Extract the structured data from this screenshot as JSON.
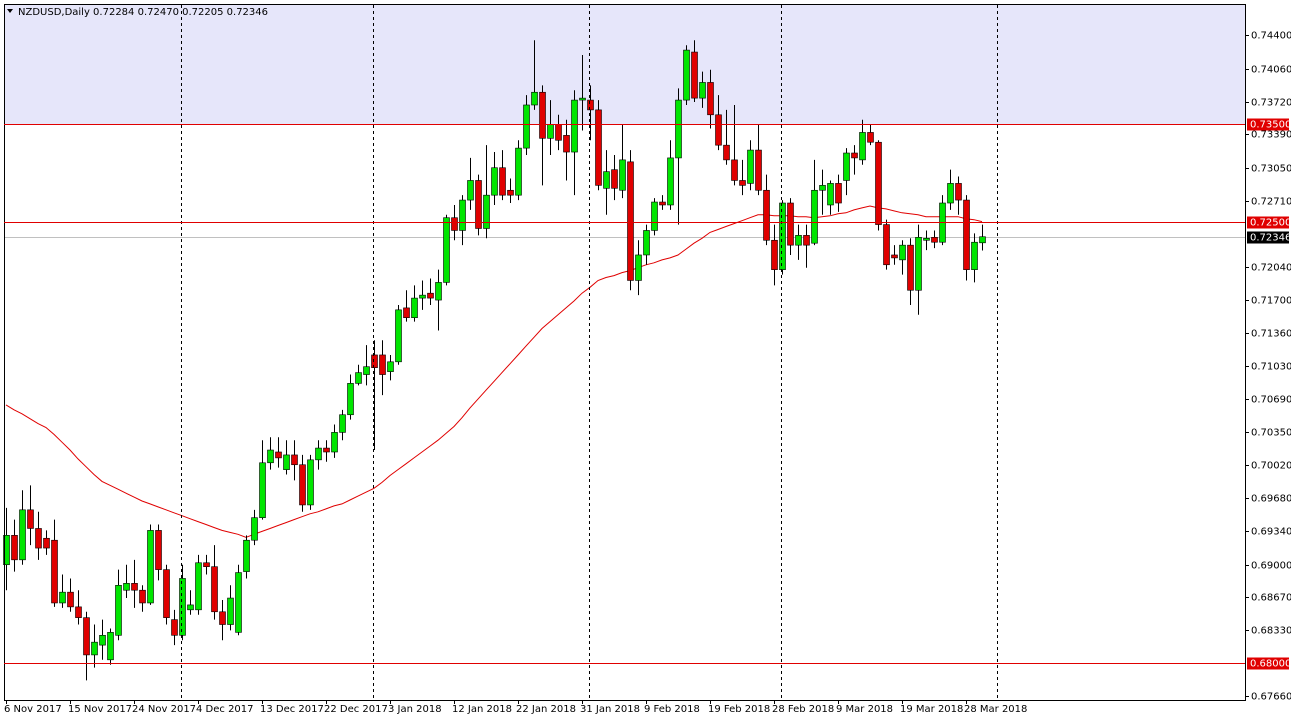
{
  "chart_data": {
    "type": "candlestick",
    "title": "NZDUSD,Daily  0.72284 0.72470 0.72205 0.72346",
    "categories": [
      "6 Nov 2017",
      null,
      null,
      null,
      null,
      null,
      null,
      null,
      "15 Nov 2017",
      null,
      null,
      null,
      null,
      null,
      null,
      null,
      "24 Nov 2017",
      null,
      null,
      null,
      null,
      null,
      null,
      null,
      "4 Dec 2017",
      null,
      null,
      null,
      null,
      null,
      null,
      null,
      "13 Dec 2017",
      null,
      null,
      null,
      null,
      null,
      null,
      null,
      "22 Dec 2017",
      null,
      null,
      null,
      null,
      null,
      null,
      null,
      "3 Jan 2018",
      null,
      null,
      null,
      null,
      null,
      null,
      null,
      "12 Jan 2018",
      null,
      null,
      null,
      null,
      null,
      null,
      null,
      "22 Jan 2018",
      null,
      null,
      null,
      null,
      null,
      null,
      null,
      "31 Jan 2018",
      null,
      null,
      null,
      null,
      null,
      null,
      null,
      "9 Feb 2018",
      null,
      null,
      null,
      null,
      null,
      null,
      null,
      "19 Feb 2018",
      null,
      null,
      null,
      null,
      null,
      null,
      null,
      "28 Feb 2018",
      null,
      null,
      null,
      null,
      null,
      null,
      null,
      "9 Mar 2018",
      null,
      null,
      null,
      null,
      null,
      null,
      null,
      "19 Mar 2018",
      null,
      null,
      null,
      null,
      null,
      null,
      null,
      "28 Mar 2018",
      null,
      null
    ],
    "open": [
      0.69,
      0.693,
      0.6905,
      0.6956,
      0.6937,
      0.6927,
      0.6925,
      0.6861,
      0.6872,
      0.6857,
      0.6846,
      0.6808,
      0.6818,
      0.6803,
      0.6828,
      0.6874,
      0.6881,
      0.6874,
      0.6861,
      0.6935,
      0.6895,
      0.6844,
      0.6828,
      0.6854,
      0.6854,
      0.6902,
      0.6898,
      0.6852,
      0.6839,
      0.6831,
      0.6893,
      0.6925,
      0.6948,
      0.7004,
      0.7015,
      0.6997,
      0.7012,
      0.7002,
      0.6961,
      0.7007,
      0.7019,
      0.7015,
      0.7035,
      0.7053,
      0.7085,
      0.7094,
      0.7114,
      0.7114,
      0.7097,
      0.7107,
      0.7162,
      0.7152,
      0.7172,
      0.7177,
      0.717,
      0.7188,
      0.7254,
      0.7241,
      0.7272,
      0.7292,
      0.7243,
      0.7277,
      0.7305,
      0.7282,
      0.7277,
      0.7325,
      0.7369,
      0.7382,
      0.7335,
      0.7349,
      0.7338,
      0.7321,
      0.7374,
      0.7374,
      0.7364,
      0.7284,
      0.7303,
      0.7282,
      0.7311,
      0.719,
      0.7216,
      0.7241,
      0.727,
      0.7267,
      0.7315,
      0.7374,
      0.7423,
      0.7376,
      0.7392,
      0.7359,
      0.7328,
      0.7313,
      0.7292,
      0.7289,
      0.7323,
      0.7282,
      0.7231,
      0.7201,
      0.7269,
      0.7226,
      0.7236,
      0.7228,
      0.7282,
      0.7267,
      0.7289,
      0.7292,
      0.732,
      0.7313,
      0.7341,
      0.7331,
      0.7247,
      0.7216,
      0.7211,
      0.7226,
      0.718,
      0.7231,
      0.7234,
      0.7229,
      0.7269,
      0.7289,
      0.7272,
      0.7201,
      0.72284
    ],
    "high": [
      0.6958,
      0.6946,
      0.6976,
      0.6981,
      0.6954,
      0.6935,
      0.6946,
      0.689,
      0.6886,
      0.6874,
      0.6852,
      0.6839,
      0.6844,
      0.6835,
      0.6895,
      0.69,
      0.6905,
      0.6879,
      0.6941,
      0.6941,
      0.69,
      0.6854,
      0.69,
      0.6874,
      0.691,
      0.691,
      0.692,
      0.6864,
      0.6879,
      0.69,
      0.693,
      0.6956,
      0.7027,
      0.703,
      0.703,
      0.7027,
      0.7027,
      0.7012,
      0.7012,
      0.7027,
      0.7027,
      0.7043,
      0.7058,
      0.7094,
      0.7104,
      0.7124,
      0.7129,
      0.7129,
      0.7114,
      0.7165,
      0.718,
      0.7185,
      0.719,
      0.7192,
      0.7201,
      0.7257,
      0.7267,
      0.7277,
      0.7315,
      0.7298,
      0.7328,
      0.7321,
      0.7323,
      0.7294,
      0.7333,
      0.7379,
      0.7435,
      0.7389,
      0.7374,
      0.7359,
      0.7354,
      0.7384,
      0.742,
      0.7389,
      0.7374,
      0.7323,
      0.7318,
      0.7349,
      0.7323,
      0.7231,
      0.7247,
      0.7274,
      0.7277,
      0.7333,
      0.7386,
      0.743,
      0.7435,
      0.7403,
      0.7405,
      0.7379,
      0.7364,
      0.7369,
      0.7313,
      0.7333,
      0.7349,
      0.7298,
      0.7247,
      0.7272,
      0.7274,
      0.7247,
      0.7247,
      0.7313,
      0.7303,
      0.7292,
      0.7298,
      0.7325,
      0.7328,
      0.7354,
      0.7349,
      0.7333,
      0.7252,
      0.7226,
      0.7231,
      0.7233,
      0.7247,
      0.7241,
      0.7241,
      0.7277,
      0.7303,
      0.7296,
      0.7277,
      0.7238,
      0.7247
    ],
    "low": [
      0.6874,
      0.6893,
      0.69,
      0.692,
      0.6905,
      0.691,
      0.6857,
      0.6856,
      0.6852,
      0.6839,
      0.6782,
      0.6795,
      0.6803,
      0.6798,
      0.6823,
      0.6866,
      0.6856,
      0.6852,
      0.6859,
      0.6884,
      0.6839,
      0.6818,
      0.6823,
      0.6849,
      0.6849,
      0.689,
      0.6844,
      0.6823,
      0.6833,
      0.6828,
      0.6886,
      0.692,
      0.6946,
      0.6997,
      0.6999,
      0.6992,
      0.6986,
      0.6954,
      0.6956,
      0.6997,
      0.7005,
      0.7009,
      0.7027,
      0.7048,
      0.7083,
      0.7083,
      0.7017,
      0.7073,
      0.7088,
      0.7104,
      0.7148,
      0.7148,
      0.716,
      0.7165,
      0.7139,
      0.7185,
      0.7231,
      0.7226,
      0.7262,
      0.7236,
      0.7233,
      0.7267,
      0.7272,
      0.7269,
      0.7272,
      0.7318,
      0.7364,
      0.7287,
      0.7318,
      0.7323,
      0.7292,
      0.7277,
      0.7343,
      0.7333,
      0.7282,
      0.7257,
      0.7272,
      0.7274,
      0.718,
      0.7175,
      0.7206,
      0.7236,
      0.7262,
      0.7262,
      0.7247,
      0.7369,
      0.7372,
      0.7366,
      0.7345,
      0.7323,
      0.7308,
      0.7287,
      0.7277,
      0.7282,
      0.7277,
      0.7226,
      0.7185,
      0.7196,
      0.7216,
      0.7211,
      0.7203,
      0.7226,
      0.7257,
      0.7257,
      0.726,
      0.7277,
      0.7298,
      0.7308,
      0.7328,
      0.7241,
      0.7201,
      0.7206,
      0.7196,
      0.7165,
      0.7155,
      0.7221,
      0.7223,
      0.7226,
      0.7262,
      0.7257,
      0.719,
      0.7188,
      0.72205
    ],
    "close": [
      0.693,
      0.6905,
      0.6956,
      0.6937,
      0.6917,
      0.6917,
      0.6861,
      0.6872,
      0.6857,
      0.6846,
      0.6808,
      0.6821,
      0.6828,
      0.6831,
      0.6879,
      0.6881,
      0.6874,
      0.6861,
      0.6935,
      0.6895,
      0.6846,
      0.6828,
      0.6886,
      0.6859,
      0.6902,
      0.6898,
      0.6852,
      0.6839,
      0.6866,
      0.6892,
      0.6925,
      0.6948,
      0.7004,
      0.7017,
      0.7009,
      0.7012,
      0.7002,
      0.6961,
      0.7007,
      0.7019,
      0.7015,
      0.7035,
      0.7053,
      0.7085,
      0.7096,
      0.7102,
      0.7101,
      0.7094,
      0.7107,
      0.716,
      0.7152,
      0.7172,
      0.7175,
      0.7172,
      0.7188,
      0.7254,
      0.7241,
      0.7272,
      0.7292,
      0.7243,
      0.7277,
      0.7305,
      0.7277,
      0.7277,
      0.7325,
      0.7369,
      0.7382,
      0.7335,
      0.7349,
      0.7333,
      0.7321,
      0.7374,
      0.7376,
      0.7364,
      0.7287,
      0.7301,
      0.7284,
      0.7313,
      0.719,
      0.7216,
      0.7241,
      0.727,
      0.7267,
      0.7315,
      0.7374,
      0.7425,
      0.7376,
      0.7392,
      0.7359,
      0.7328,
      0.7313,
      0.7292,
      0.7287,
      0.7323,
      0.7282,
      0.7231,
      0.7201,
      0.7269,
      0.7226,
      0.7236,
      0.7226,
      0.7282,
      0.7287,
      0.7289,
      0.7269,
      0.732,
      0.7315,
      0.7341,
      0.7331,
      0.7247,
      0.7206,
      0.7213,
      0.7226,
      0.718,
      0.7234,
      0.7233,
      0.7229,
      0.7269,
      0.7289,
      0.7272,
      0.7201,
      0.7229,
      0.72346
    ],
    "up_color": "#00e600",
    "down_color": "#e00000",
    "moving_average": {
      "color": "#e00000",
      "values": [
        0.7063,
        0.7058,
        0.7054,
        0.7049,
        0.7044,
        0.704,
        0.7033,
        0.7025,
        0.7017,
        0.7008,
        0.7,
        0.6992,
        0.6985,
        0.6981,
        0.6977,
        0.6973,
        0.6969,
        0.6965,
        0.6962,
        0.6959,
        0.6956,
        0.6953,
        0.695,
        0.6947,
        0.6944,
        0.6941,
        0.6938,
        0.6935,
        0.6933,
        0.6931,
        0.6928,
        0.6931,
        0.6934,
        0.6937,
        0.694,
        0.6943,
        0.6946,
        0.6949,
        0.6952,
        0.6954,
        0.6957,
        0.696,
        0.6962,
        0.6966,
        0.697,
        0.6974,
        0.6978,
        0.6984,
        0.6991,
        0.6997,
        0.7003,
        0.7009,
        0.7015,
        0.7021,
        0.7027,
        0.7034,
        0.7041,
        0.705,
        0.706,
        0.7069,
        0.7078,
        0.7087,
        0.7096,
        0.7105,
        0.7114,
        0.7123,
        0.7132,
        0.7141,
        0.7148,
        0.7155,
        0.7162,
        0.7169,
        0.7177,
        0.7183,
        0.719,
        0.7193,
        0.7195,
        0.7198,
        0.72,
        0.7203,
        0.7206,
        0.7208,
        0.7211,
        0.7213,
        0.7216,
        0.7222,
        0.7228,
        0.7233,
        0.7239,
        0.7242,
        0.7245,
        0.7248,
        0.7251,
        0.7254,
        0.7257,
        0.7257,
        0.7256,
        0.7256,
        0.7256,
        0.7255,
        0.7255,
        0.7254,
        0.7255,
        0.7256,
        0.7258,
        0.7259,
        0.7262,
        0.7264,
        0.7266,
        0.7264,
        0.7263,
        0.7261,
        0.7259,
        0.7258,
        0.7257,
        0.7255,
        0.7255,
        0.7255,
        0.7255,
        0.7255,
        0.7253,
        0.7252,
        0.725
      ]
    },
    "ylim": [
      0.6762,
      0.7471
    ],
    "yticks": [
      {
        "value": 0.744,
        "label": "0.74400"
      },
      {
        "value": 0.7406,
        "label": "0.74060"
      },
      {
        "value": 0.7372,
        "label": "0.73720"
      },
      {
        "value": 0.7339,
        "label": "0.73390"
      },
      {
        "value": 0.7305,
        "label": "0.73050"
      },
      {
        "value": 0.7271,
        "label": "0.72710"
      },
      {
        "value": 0.7204,
        "label": "0.72040"
      },
      {
        "value": 0.717,
        "label": "0.71700"
      },
      {
        "value": 0.7136,
        "label": "0.71360"
      },
      {
        "value": 0.7103,
        "label": "0.71030"
      },
      {
        "value": 0.7069,
        "label": "0.70690"
      },
      {
        "value": 0.7035,
        "label": "0.70350"
      },
      {
        "value": 0.7002,
        "label": "0.70020"
      },
      {
        "value": 0.6968,
        "label": "0.69680"
      },
      {
        "value": 0.6934,
        "label": "0.69340"
      },
      {
        "value": 0.69,
        "label": "0.69000"
      },
      {
        "value": 0.6867,
        "label": "0.68670"
      },
      {
        "value": 0.6833,
        "label": "0.68330"
      },
      {
        "value": 0.6766,
        "label": "0.67660"
      }
    ],
    "levels": [
      {
        "value": 0.735,
        "label": "0.73500",
        "color": "#e00000",
        "shade_above": "#e6e6fa"
      },
      {
        "value": 0.725,
        "label": "0.72500",
        "color": "#e00000"
      },
      {
        "value": 0.68,
        "label": "0.68000",
        "color": "#e00000"
      }
    ],
    "last_price": {
      "value": 0.72346,
      "label": "0.72346",
      "color": "#c0c0c0"
    },
    "grid": false
  }
}
